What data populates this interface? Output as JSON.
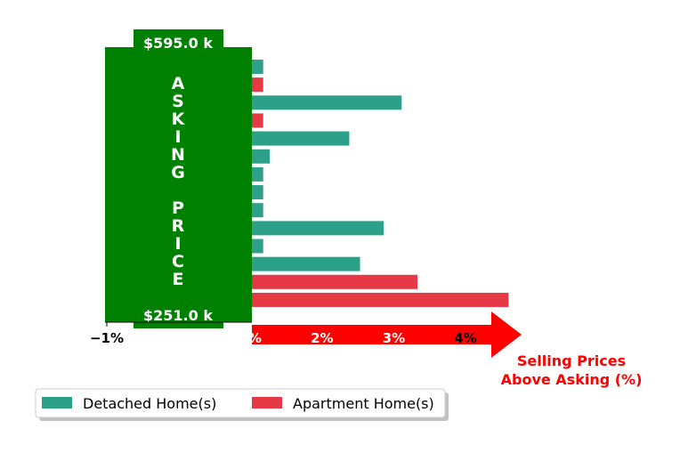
{
  "chart_data": {
    "type": "bar",
    "orientation": "horizontal",
    "xlabel": "Selling Prices\nAbove Asking (%)",
    "xlim": [
      -1,
      4.5
    ],
    "x_ticks": [
      {
        "value": -1,
        "label": "−1%"
      },
      {
        "value": 1,
        "label": "1%"
      },
      {
        "value": 2,
        "label": "2%"
      },
      {
        "value": 3,
        "label": "3%"
      },
      {
        "value": 4,
        "label": "4%"
      }
    ],
    "y_panel": {
      "label": "A S K I N G   P R I C E",
      "letters": [
        "A",
        "S",
        "K",
        "I",
        "N",
        "G",
        "",
        "P",
        "R",
        "I",
        "C",
        "E"
      ],
      "top_value": "$595.0 k",
      "bottom_value": "$251.0 k"
    },
    "series": [
      {
        "name": "Detached Home(s)",
        "color": "#2ca089"
      },
      {
        "name": "Apartment Home(s)",
        "color": "#e63946"
      }
    ],
    "bars": [
      {
        "series": 0,
        "value": 1.18
      },
      {
        "series": 1,
        "value": 1.18
      },
      {
        "series": 0,
        "value": 3.11
      },
      {
        "series": 1,
        "value": 1.18
      },
      {
        "series": 0,
        "value": 2.38
      },
      {
        "series": 0,
        "value": 1.27
      },
      {
        "series": 0,
        "value": 1.18
      },
      {
        "series": 0,
        "value": 1.18
      },
      {
        "series": 0,
        "value": 1.18
      },
      {
        "series": 0,
        "value": 2.86
      },
      {
        "series": 0,
        "value": 1.18
      },
      {
        "series": 0,
        "value": 2.53
      },
      {
        "series": 1,
        "value": 3.33
      },
      {
        "series": 1,
        "value": 4.6
      }
    ],
    "legend": {
      "placement": "bottom-left"
    },
    "grid": false
  }
}
